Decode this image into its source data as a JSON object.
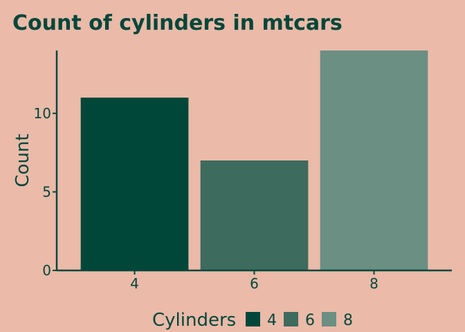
{
  "chart_data": {
    "type": "bar",
    "title": "Count of cylinders in mtcars",
    "xlabel": "",
    "ylabel": "Count",
    "categories": [
      "4",
      "6",
      "8"
    ],
    "values": [
      11,
      7,
      14
    ],
    "ylim": [
      0,
      14
    ],
    "yticks": [
      "0",
      "5",
      "10"
    ],
    "grid": false,
    "legend": {
      "title": "Cylinders",
      "placement": "bottom",
      "entries": [
        "4",
        "6",
        "8"
      ]
    },
    "colors": [
      "#00473a",
      "#3d6b5e",
      "#6b8f83"
    ],
    "axis_color": "#00473a",
    "background": "#ebbaa9"
  }
}
